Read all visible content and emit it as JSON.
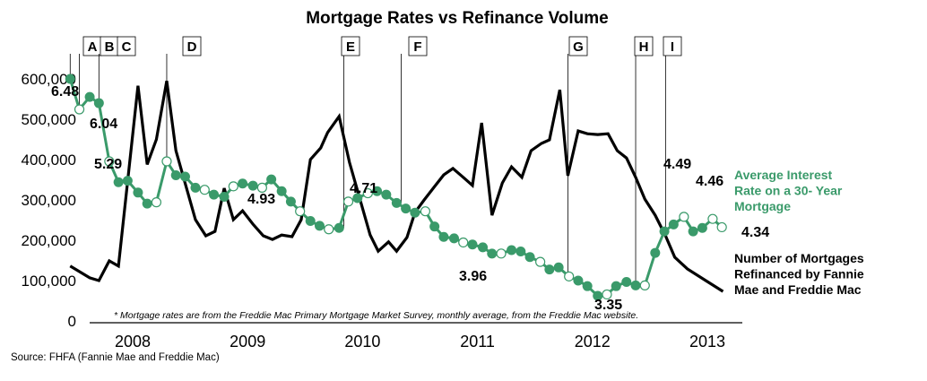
{
  "chart_data": {
    "type": "line",
    "title": "Mortgage Rates vs Refinance Volume",
    "xlabel": "",
    "ylabel": "",
    "x_tick_labels": [
      "2008",
      "2009",
      "2010",
      "2011",
      "2012",
      "2013"
    ],
    "y_tick_labels": [
      "0",
      "100,000",
      "200,000",
      "300,000",
      "400,000",
      "500,000",
      "600,000"
    ],
    "ylim": [
      0,
      600000
    ],
    "x_range_years": [
      2007.6,
      2013.35
    ],
    "grid": false,
    "series": [
      {
        "name": "Number of Mortgages Refinanced by Fannie Mae and Freddie Mac",
        "label_lines": [
          "Number of Mortgages",
          "Refinanced by Fannie",
          "Mae and Freddie Mac"
        ],
        "color": "#000000",
        "x": [
          2007.62,
          2007.79,
          2007.87,
          2007.96,
          2008.04,
          2008.21,
          2008.29,
          2008.37,
          2008.46,
          2008.54,
          2008.71,
          2008.8,
          2008.88,
          2008.96,
          2009.04,
          2009.12,
          2009.21,
          2009.3,
          2009.38,
          2009.46,
          2009.55,
          2009.63,
          2009.71,
          2009.8,
          2009.86,
          2009.96,
          2010.05,
          2010.13,
          2010.23,
          2010.3,
          2010.39,
          2010.46,
          2010.55,
          2010.62,
          2010.7,
          2010.79,
          2010.87,
          2010.95,
          2011.04,
          2011.12,
          2011.2,
          2011.29,
          2011.38,
          2011.46,
          2011.55,
          2011.63,
          2011.72,
          2011.79,
          2011.88,
          2011.95,
          2012.04,
          2012.12,
          2012.21,
          2012.3,
          2012.38,
          2012.46,
          2012.54,
          2012.62,
          2012.71,
          2012.8,
          2012.88,
          2012.99,
          2013.15,
          2013.3
        ],
        "values": [
          136000,
          107000,
          100000,
          149000,
          136000,
          583000,
          388000,
          450000,
          595000,
          422000,
          251000,
          211000,
          222000,
          329000,
          251000,
          273000,
          240000,
          211000,
          202000,
          213000,
          209000,
          251000,
          400000,
          429000,
          467000,
          507000,
          393000,
          313000,
          213000,
          173000,
          196000,
          173000,
          207000,
          269000,
          300000,
          333000,
          362000,
          378000,
          356000,
          336000,
          491000,
          262000,
          342000,
          382000,
          356000,
          422000,
          440000,
          449000,
          573000,
          360000,
          471000,
          464000,
          462000,
          464000,
          422000,
          404000,
          356000,
          302000,
          262000,
          211000,
          158000,
          129000,
          100000,
          73000
        ]
      },
      {
        "name": "Average Interest Rate on a 30- Year Mortgage",
        "label_lines": [
          "Average Interest",
          "Rate on a 30- Year",
          "Mortgage"
        ],
        "color": "#3a9a6a",
        "unit": "percent",
        "x": [
          2007.62,
          2007.7,
          2007.79,
          2007.87,
          2007.96,
          2008.04,
          2008.12,
          2008.21,
          2008.29,
          2008.37,
          2008.46,
          2008.54,
          2008.62,
          2008.71,
          2008.79,
          2008.87,
          2008.96,
          2009.04,
          2009.12,
          2009.21,
          2009.29,
          2009.37,
          2009.46,
          2009.54,
          2009.62,
          2009.71,
          2009.79,
          2009.87,
          2009.96,
          2010.04,
          2010.12,
          2010.21,
          2010.29,
          2010.37,
          2010.46,
          2010.54,
          2010.62,
          2010.71,
          2010.79,
          2010.87,
          2010.96,
          2011.04,
          2011.12,
          2011.21,
          2011.29,
          2011.37,
          2011.46,
          2011.54,
          2011.62,
          2011.71,
          2011.79,
          2011.87,
          2011.96,
          2012.04,
          2012.12,
          2012.21,
          2012.29,
          2012.37,
          2012.46,
          2012.54,
          2012.62,
          2012.71,
          2012.79,
          2012.87,
          2012.96,
          2013.04,
          2013.12,
          2013.21,
          2013.29
        ],
        "values": [
          6.48,
          6.04,
          6.22,
          6.13,
          5.29,
          4.99,
          5.01,
          4.84,
          4.68,
          4.7,
          5.29,
          5.09,
          5.07,
          4.91,
          4.88,
          4.81,
          4.78,
          4.93,
          4.97,
          4.94,
          4.91,
          5.03,
          4.86,
          4.71,
          4.57,
          4.43,
          4.36,
          4.31,
          4.33,
          4.71,
          4.76,
          4.83,
          4.86,
          4.81,
          4.69,
          4.61,
          4.55,
          4.57,
          4.35,
          4.2,
          4.18,
          4.12,
          4.09,
          4.05,
          3.96,
          3.96,
          4.01,
          3.99,
          3.91,
          3.84,
          3.73,
          3.76,
          3.63,
          3.57,
          3.49,
          3.35,
          3.37,
          3.49,
          3.55,
          3.5,
          3.5,
          3.97,
          4.28,
          4.38,
          4.49,
          4.28,
          4.33,
          4.46,
          4.34
        ],
        "hollow_markers_at": [
          2007.7,
          2007.96,
          2008.37,
          2008.46,
          2008.79,
          2009.04,
          2009.29,
          2009.62,
          2009.87,
          2010.04,
          2010.21,
          2010.71,
          2011.04,
          2011.37,
          2011.71,
          2011.96,
          2012.29,
          2012.62,
          2012.96,
          2013.21,
          2013.29
        ]
      }
    ],
    "data_labels": [
      "6.48",
      "6.04",
      "5.29",
      "4.93",
      "4.71",
      "3.96",
      "3.35",
      "4.49",
      "4.46",
      "4.34"
    ],
    "event_markers": [
      {
        "label": "A",
        "x": 2007.62
      },
      {
        "label": "B",
        "x": 2007.7
      },
      {
        "label": "C",
        "x": 2007.87
      },
      {
        "label": "D",
        "x": 2008.46
      },
      {
        "label": "E",
        "x": 2010.0
      },
      {
        "label": "F",
        "x": 2010.5
      },
      {
        "label": "G",
        "x": 2011.95
      },
      {
        "label": "H",
        "x": 2012.54
      },
      {
        "label": "I",
        "x": 2012.8
      }
    ],
    "footnote": "* Mortgage rates are from the Freddie Mac Primary Mortgage Market Survey, monthly average, from the Freddie Mac website.",
    "source": "Source: FHFA (Fannie Mae and Freddie Mac)"
  }
}
